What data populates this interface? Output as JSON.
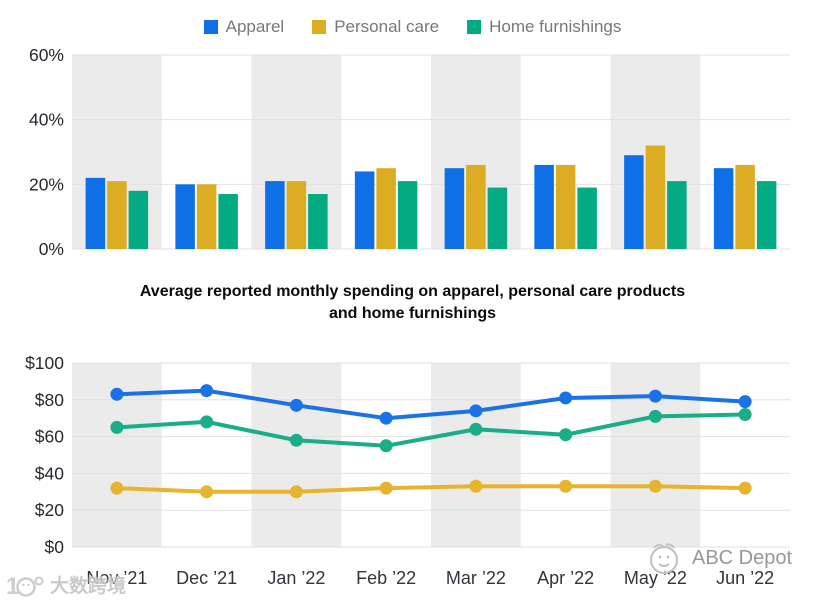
{
  "legend": {
    "items": [
      {
        "label": "Apparel",
        "color": "#0F6FE6"
      },
      {
        "label": "Personal care",
        "color": "#DCAD23"
      },
      {
        "label": "Home furnishings",
        "color": "#04AB82"
      }
    ]
  },
  "title": {
    "lines": [
      "Average reported monthly spending on apparel, personal care products",
      "and home furnishings"
    ]
  },
  "watermarks": {
    "bottom_left": {
      "icon": "100-mascot-logo",
      "text": "大数跨境"
    },
    "bottom_right": {
      "icon": "scribble-globe-logo",
      "text": "ABC Depot"
    }
  },
  "style": {
    "band_color": "#EBEBEB",
    "grid_color": "#E2E2E2",
    "axis_label_color": "#27282E",
    "x_label_color": "#33343B",
    "legend_text_color": "#77787B"
  },
  "chart_data": [
    {
      "type": "bar",
      "title": "",
      "categories": [
        "Nov ’21",
        "Dec ’21",
        "Jan ’22",
        "Feb ’22",
        "Mar ’22",
        "Apr ’22",
        "May ’22",
        "Jun ’22"
      ],
      "series": [
        {
          "name": "Apparel",
          "color": "#0F6FE6",
          "values": [
            22,
            20,
            21,
            24,
            25,
            26,
            29,
            25
          ]
        },
        {
          "name": "Personal care",
          "color": "#DCAD23",
          "values": [
            21,
            20,
            21,
            25,
            26,
            26,
            32,
            26
          ]
        },
        {
          "name": "Home furnishings",
          "color": "#04AB82",
          "values": [
            18,
            17,
            17,
            21,
            19,
            19,
            21,
            21
          ]
        }
      ],
      "xlabel": "",
      "ylabel": "",
      "ylim": [
        0,
        60
      ],
      "yticks": [
        {
          "value": 0,
          "label": "0%"
        },
        {
          "value": 20,
          "label": "20%"
        },
        {
          "value": 40,
          "label": "40%"
        },
        {
          "value": 60,
          "label": "60%"
        }
      ],
      "grid": true,
      "band_shading_on_categories": [
        0,
        2,
        4,
        6
      ],
      "x_tick_labels_shown": false,
      "legend_position": "top"
    },
    {
      "type": "line",
      "title": "",
      "categories": [
        "Nov ’21",
        "Dec ’21",
        "Jan ’22",
        "Feb ’22",
        "Mar ’22",
        "Apr ’22",
        "May ’22",
        "Jun ’22"
      ],
      "series": [
        {
          "name": "Apparel",
          "color": "#1B72E8",
          "values": [
            83,
            85,
            77,
            70,
            74,
            81,
            82,
            79
          ]
        },
        {
          "name": "Personal care",
          "color": "#E6B42E",
          "values": [
            32,
            30,
            30,
            32,
            33,
            33,
            33,
            32
          ]
        },
        {
          "name": "Home furnishings",
          "color": "#19AD88",
          "values": [
            65,
            68,
            58,
            55,
            64,
            61,
            71,
            72
          ]
        }
      ],
      "xlabel": "",
      "ylabel": "",
      "ylim": [
        0,
        100
      ],
      "yticks": [
        {
          "value": 0,
          "label": "$0"
        },
        {
          "value": 20,
          "label": "$20"
        },
        {
          "value": 40,
          "label": "$40"
        },
        {
          "value": 60,
          "label": "$60"
        },
        {
          "value": 80,
          "label": "$80"
        },
        {
          "value": 100,
          "label": "$100"
        }
      ],
      "grid": true,
      "band_shading_on_categories": [
        0,
        2,
        4,
        6
      ],
      "x_tick_labels_shown": true,
      "legend_position": "shared-top"
    }
  ]
}
